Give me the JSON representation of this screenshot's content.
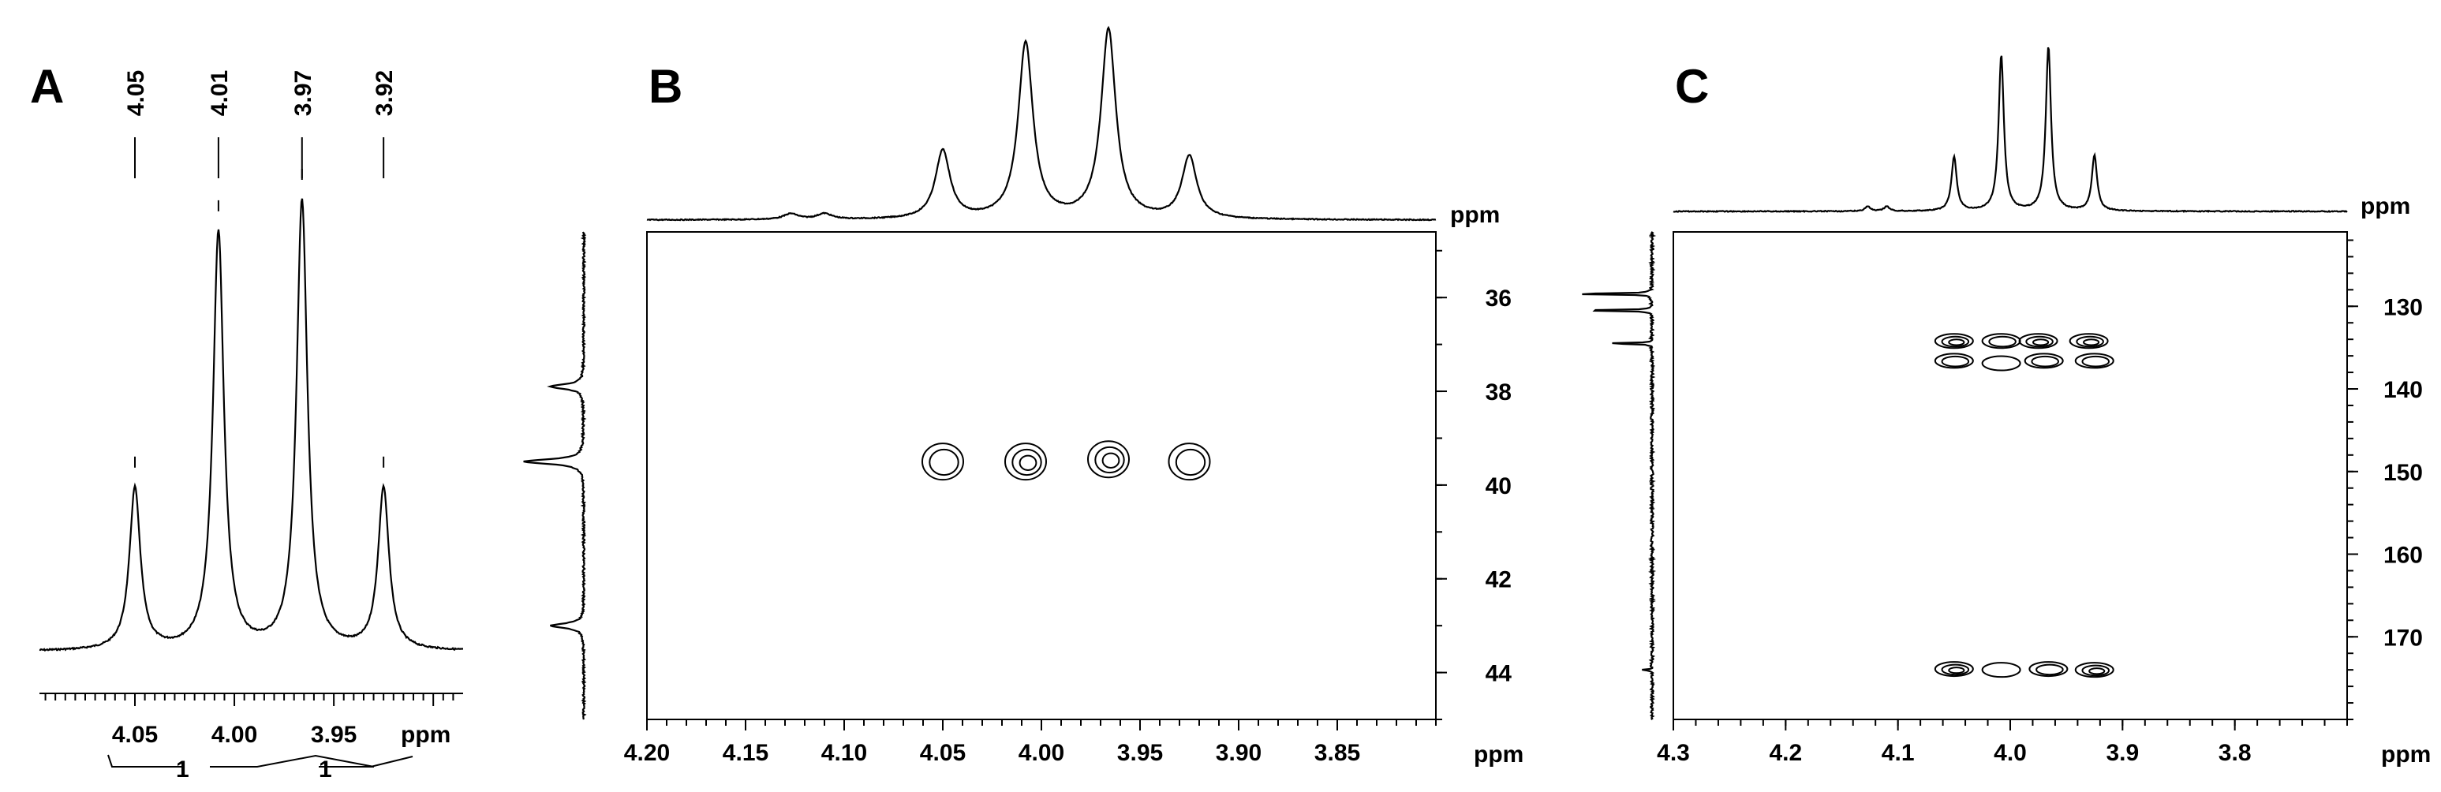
{
  "chart_data": [
    {
      "panel": "A",
      "type": "line",
      "description_kind": "1D 1H NMR spectrum",
      "peak_labels": [
        "4.05",
        "4.01",
        "3.97",
        "3.92"
      ],
      "peaks": [
        {
          "x": 4.05,
          "intensity": 0.36
        },
        {
          "x": 4.008,
          "intensity": 0.93
        },
        {
          "x": 3.966,
          "intensity": 1.0
        },
        {
          "x": 3.925,
          "intensity": 0.36
        }
      ],
      "x_axis": {
        "label": "ppm",
        "reversed": true,
        "range": [
          4.098,
          3.885
        ],
        "tick_labels": [
          "4.05",
          "4.00",
          "3.95"
        ],
        "ticks": [
          4.05,
          4.0,
          3.95
        ]
      },
      "integrals": [
        "1",
        "1"
      ]
    },
    {
      "panel": "B",
      "type": "heatmap",
      "description_kind": "2D 1H-13C correlation contour plot",
      "x_axis": {
        "label": "ppm",
        "reversed": true,
        "range": [
          4.2,
          3.8
        ],
        "tick_labels": [
          "4.20",
          "4.15",
          "4.10",
          "4.05",
          "4.00",
          "3.95",
          "3.90",
          "3.85"
        ],
        "ticks": [
          4.2,
          4.15,
          4.1,
          4.05,
          4.0,
          3.95,
          3.9,
          3.85
        ]
      },
      "y_axis": {
        "label": "ppm",
        "range": [
          34.6,
          45.0
        ],
        "tick_labels": [
          "36",
          "38",
          "40",
          "42",
          "44"
        ],
        "ticks": [
          36,
          38,
          40,
          42,
          44
        ]
      },
      "top_projection_peaks": [
        {
          "x": 4.05,
          "intensity": 0.36
        },
        {
          "x": 4.008,
          "intensity": 0.93
        },
        {
          "x": 3.966,
          "intensity": 1.0
        },
        {
          "x": 3.925,
          "intensity": 0.33
        },
        {
          "x": 4.127,
          "intensity": 0.03
        },
        {
          "x": 4.11,
          "intensity": 0.03
        }
      ],
      "side_projection_peaks": [
        {
          "y": 37.9,
          "intensity": 0.55
        },
        {
          "y": 39.5,
          "intensity": 1.0
        },
        {
          "y": 43.0,
          "intensity": 0.55
        }
      ],
      "cross_peaks": [
        {
          "x": 4.05,
          "y": 39.5,
          "levels": 2
        },
        {
          "x": 4.008,
          "y": 39.5,
          "levels": 3
        },
        {
          "x": 3.966,
          "y": 39.45,
          "levels": 3
        },
        {
          "x": 3.925,
          "y": 39.5,
          "levels": 2
        }
      ]
    },
    {
      "panel": "C",
      "type": "heatmap",
      "description_kind": "2D 1H-13C long-range correlation contour plot",
      "x_axis": {
        "label": "ppm",
        "reversed": true,
        "range": [
          4.3,
          3.7
        ],
        "tick_labels": [
          "4.3",
          "4.2",
          "4.1",
          "4.0",
          "3.9",
          "3.8"
        ],
        "ticks": [
          4.3,
          4.2,
          4.1,
          4.0,
          3.9,
          3.8
        ]
      },
      "y_axis": {
        "label": "ppm",
        "range": [
          121.0,
          180.0
        ],
        "tick_labels": [
          "130",
          "140",
          "150",
          "160",
          "170"
        ],
        "ticks": [
          130,
          140,
          150,
          160,
          170
        ]
      },
      "top_projection_peaks": [
        {
          "x": 4.05,
          "intensity": 0.33
        },
        {
          "x": 4.008,
          "intensity": 0.95
        },
        {
          "x": 3.966,
          "intensity": 1.0
        },
        {
          "x": 3.925,
          "intensity": 0.34
        },
        {
          "x": 4.127,
          "intensity": 0.03
        },
        {
          "x": 4.11,
          "intensity": 0.03
        }
      ],
      "side_projection_peaks": [
        {
          "y": 128.5,
          "intensity": 1.0
        },
        {
          "y": 130.5,
          "intensity": 0.9
        },
        {
          "y": 134.5,
          "intensity": 0.55
        },
        {
          "y": 174.0,
          "intensity": 0.1
        }
      ],
      "cross_peaks": [
        {
          "x": 4.05,
          "y": 134.2,
          "levels": 3
        },
        {
          "x": 4.008,
          "y": 134.2,
          "levels": 2
        },
        {
          "x": 3.975,
          "y": 134.2,
          "levels": 3
        },
        {
          "x": 3.93,
          "y": 134.2,
          "levels": 3
        },
        {
          "x": 4.05,
          "y": 136.6,
          "levels": 2
        },
        {
          "x": 4.008,
          "y": 136.9,
          "levels": 1
        },
        {
          "x": 3.97,
          "y": 136.6,
          "levels": 2
        },
        {
          "x": 3.925,
          "y": 136.6,
          "levels": 2
        },
        {
          "x": 4.05,
          "y": 173.9,
          "levels": 3
        },
        {
          "x": 4.008,
          "y": 174.0,
          "levels": 1
        },
        {
          "x": 3.966,
          "y": 173.9,
          "levels": 2
        },
        {
          "x": 3.925,
          "y": 174.0,
          "levels": 3
        }
      ]
    }
  ]
}
